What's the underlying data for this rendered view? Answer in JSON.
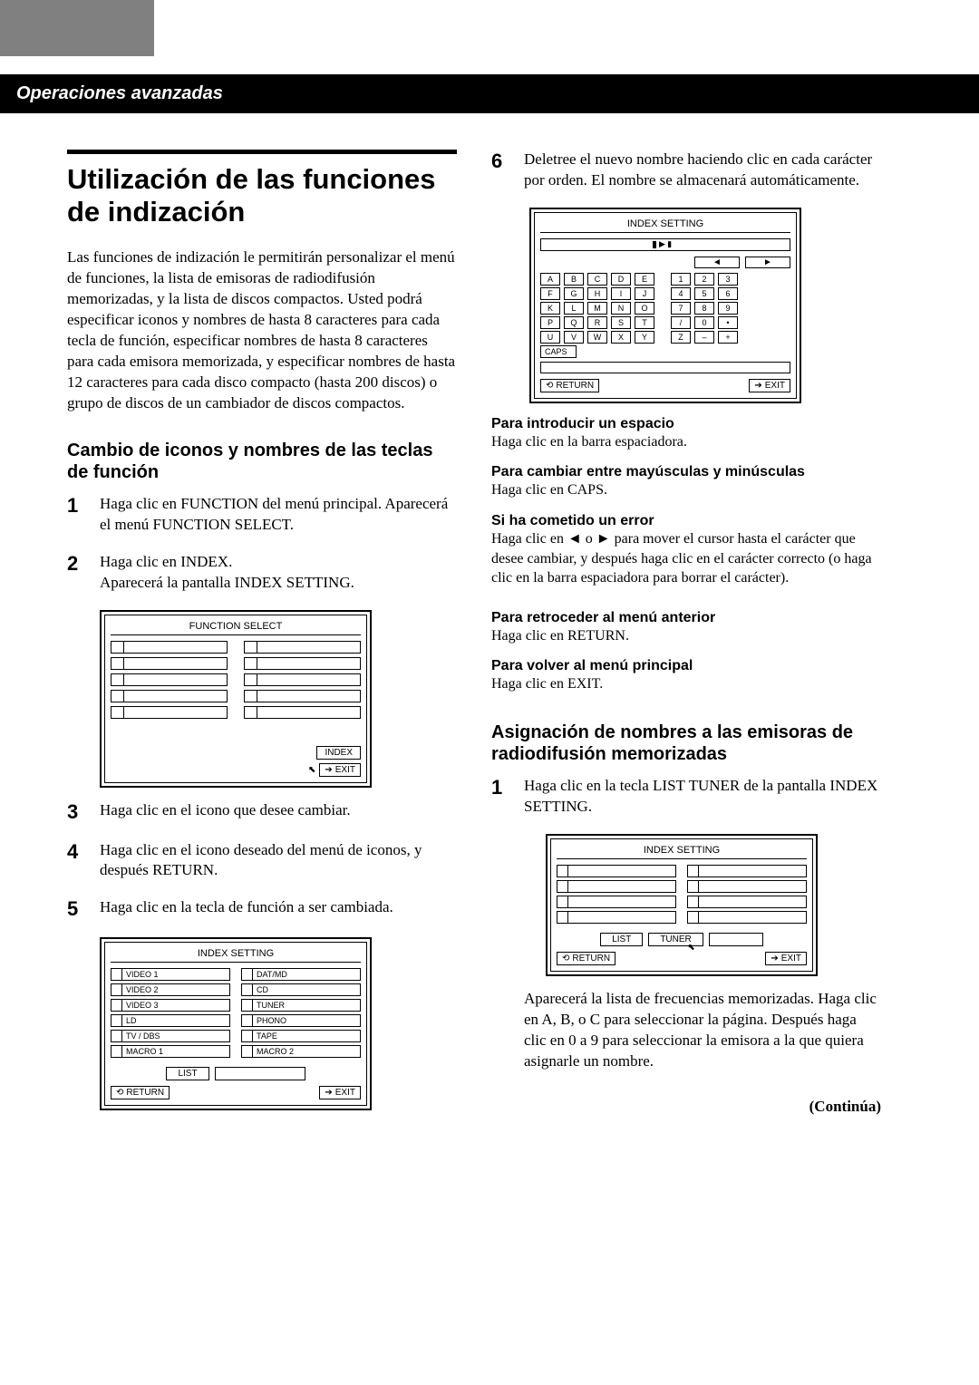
{
  "header": {
    "section_title": "Operaciones avanzadas"
  },
  "left": {
    "title": "Utilización de las funciones de indización",
    "intro": "Las funciones de indización le permitirán personalizar el menú de funciones, la lista de emisoras de radiodifusión memorizadas, y la lista de discos compactos.  Usted podrá especificar iconos y nombres de hasta 8 caracteres para cada tecla de función, especificar nombres de hasta 8 caracteres para cada emisora memorizada, y especificar nombres de hasta 12 caracteres para cada disco compacto (hasta 200 discos) o grupo de discos de un cambiador de discos compactos.",
    "sub1": "Cambio de iconos y nombres de las teclas de función",
    "step1": "Haga clic en FUNCTION del menú principal. Aparecerá el menú FUNCTION SELECT.",
    "step2_a": "Haga clic en INDEX.",
    "step2_b": "Aparecerá la pantalla INDEX SETTING.",
    "step3": "Haga clic en el icono que desee cambiar.",
    "step4": "Haga clic en el icono deseado del menú de iconos, y después RETURN.",
    "step5": "Haga clic en la tecla de función a ser cambiada."
  },
  "right": {
    "step6": "Deletree el nuevo nombre haciendo clic en cada carácter por orden.  El nombre se almacenará automáticamente.",
    "n1_h": "Para introducir un espacio",
    "n1_b": "Haga clic en la barra espaciadora.",
    "n2_h": "Para cambiar entre mayúsculas y minúsculas",
    "n2_b": "Haga clic en CAPS.",
    "n3_h": "Si ha cometido un error",
    "n3_b1": "Haga clic en ",
    "n3_b2": " o ",
    "n3_b3": " para mover el cursor hasta el carácter que desee cambiar, y después haga clic en el carácter correcto (o haga clic en la barra espaciadora para borrar el carácter).",
    "n4_h": "Para retroceder al menú anterior",
    "n4_b": "Haga clic en RETURN.",
    "n5_h": "Para volver al menú principal",
    "n5_b": "Haga clic en EXIT.",
    "sub2": "Asignación de nombres a las emisoras de radiodifusión memorizadas",
    "r_step1": "Haga clic en la tecla LIST TUNER de la pantalla INDEX SETTING.",
    "r_after": "Aparecerá la lista de frecuencias memorizadas. Haga clic en A, B, o C para seleccionar la página. Después haga clic en 0 a 9 para seleccionar la emisora a la que quiera asignarle un nombre.",
    "continua": "(Continúa)"
  },
  "diagrams": {
    "function_select": "FUNCTION SELECT",
    "index": "INDEX",
    "exit": "EXIT",
    "return": "RETURN",
    "index_setting": "INDEX SETTING",
    "list": "LIST",
    "tuner": "TUNER",
    "caps": "CAPS",
    "slots_left": [
      "VIDEO   1",
      "VIDEO   2",
      "VIDEO   3",
      "LD",
      "TV / DBS",
      "MACRO   1"
    ],
    "slots_right": [
      "DAT/MD",
      "CD",
      "TUNER",
      "PHONO",
      "TAPE",
      "MACRO   2"
    ],
    "kb_rows_left": [
      [
        "A",
        "B",
        "C",
        "D",
        "E"
      ],
      [
        "F",
        "G",
        "H",
        "I",
        "J"
      ],
      [
        "K",
        "L",
        "M",
        "N",
        "O"
      ],
      [
        "P",
        "Q",
        "R",
        "S",
        "T"
      ],
      [
        "U",
        "V",
        "W",
        "X",
        "Y"
      ]
    ],
    "kb_rows_right": [
      [
        "1",
        "2",
        "3"
      ],
      [
        "4",
        "5",
        "6"
      ],
      [
        "7",
        "8",
        "9"
      ],
      [
        "/",
        "0",
        "•"
      ],
      [
        "Z",
        "–",
        "+"
      ]
    ]
  },
  "style": {
    "accent_color": "#000000",
    "background": "#ffffff",
    "gray_block": "#808080",
    "body_fontsize": 17,
    "title_fontsize": 31,
    "sub_fontsize": 20
  }
}
